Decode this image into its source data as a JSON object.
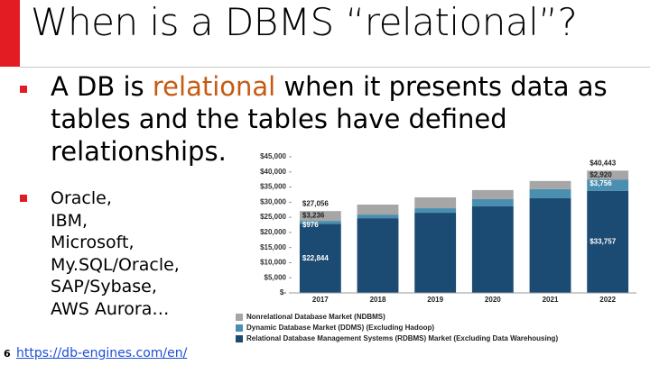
{
  "slide": {
    "title": "When is a DBMS “relational”?",
    "bullet1": [
      "A DB is ",
      "relational",
      " when it presents data as tables and the tables have defined relationships."
    ],
    "bullet2": [
      "Oracle,",
      "IBM,",
      "Microsoft,",
      "My.SQL/Oracle,",
      "SAP/Sybase,",
      "AWS Aurora…"
    ],
    "page_number": "6",
    "link": "https://db-engines.com/en/"
  },
  "chart_data": {
    "type": "stacked-bar",
    "categories": [
      "2017",
      "2018",
      "2019",
      "2020",
      "2021",
      "2022"
    ],
    "series": [
      {
        "name": "Relational Database Management Systems (RDBMS) Market (Excluding Data Warehousing)",
        "color": "#1b4a73",
        "values": [
          22844,
          24700,
          26500,
          28600,
          31300,
          33757
        ],
        "value_labels": [
          "$22,844",
          null,
          null,
          null,
          null,
          "$33,757"
        ]
      },
      {
        "name": "Dynamic Database Market (DDMS) (Excluding Hadoop)",
        "color": "#4a8fb0",
        "values": [
          976,
          1200,
          1500,
          2400,
          3000,
          3756
        ],
        "value_labels": [
          "$976",
          null,
          null,
          null,
          null,
          "$3,756"
        ]
      },
      {
        "name": "Nonrelational Database Market (NDBMS)",
        "color": "#a6a6a6",
        "values": [
          3236,
          3300,
          3600,
          3000,
          2700,
          2920
        ],
        "value_labels": [
          "$3,236",
          null,
          null,
          null,
          null,
          "$2,920"
        ]
      }
    ],
    "totals": [
      {
        "value": 27056,
        "label": "$27,056"
      },
      null,
      null,
      null,
      null,
      {
        "value": 40443,
        "label": "$40,443"
      }
    ],
    "ylim": [
      0,
      45000
    ],
    "yticks": [
      {
        "value": 0,
        "label": "$-"
      },
      {
        "value": 5000,
        "label": "$5,000"
      },
      {
        "value": 10000,
        "label": "$10,000"
      },
      {
        "value": 15000,
        "label": "$15,000"
      },
      {
        "value": 20000,
        "label": "$20,000"
      },
      {
        "value": 25000,
        "label": "$25,000"
      },
      {
        "value": 30000,
        "label": "$30,000"
      },
      {
        "value": 35000,
        "label": "$35,000"
      },
      {
        "value": 40000,
        "label": "$40,000"
      },
      {
        "value": 45000,
        "label": "$45,000"
      }
    ],
    "legend": "bottom",
    "legend_order": [
      2,
      1,
      0
    ]
  }
}
